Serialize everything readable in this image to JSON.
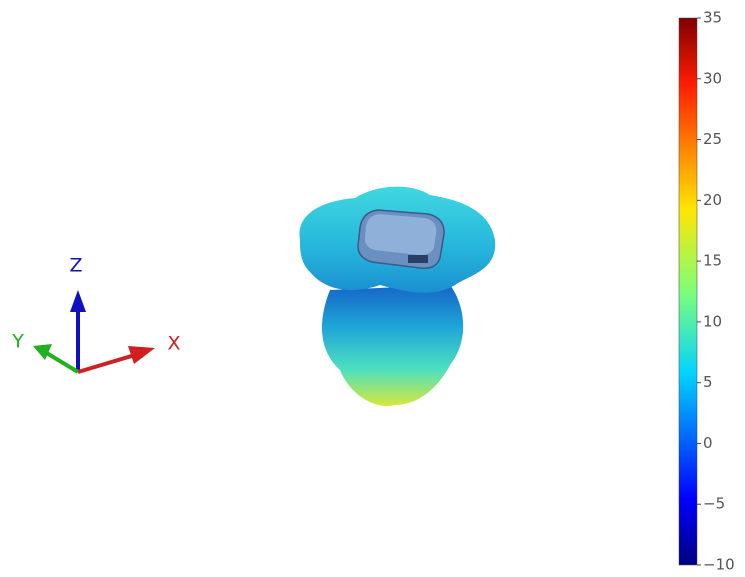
{
  "chart_data": {
    "type": "radiation-pattern",
    "axes": {
      "x": "X",
      "y": "Y",
      "z": "Z"
    },
    "colorbar": {
      "lim": [
        -10,
        35
      ],
      "ticks": [
        35,
        30,
        25,
        20,
        15,
        10,
        5,
        0,
        {
          "value": -5,
          "label": "−5"
        },
        {
          "value": -10,
          "label": "−10"
        }
      ]
    }
  }
}
